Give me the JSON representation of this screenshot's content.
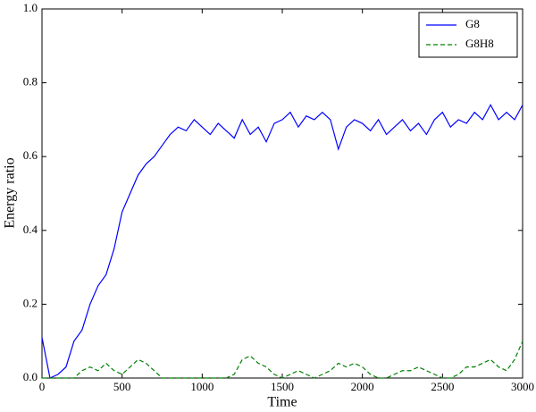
{
  "chart_data": {
    "type": "line",
    "xlabel": "Time",
    "ylabel": "Energy ratio",
    "x": [
      0,
      50,
      100,
      150,
      200,
      250,
      300,
      350,
      400,
      450,
      500,
      550,
      600,
      650,
      700,
      750,
      800,
      850,
      900,
      950,
      1000,
      1050,
      1100,
      1150,
      1200,
      1250,
      1300,
      1350,
      1400,
      1450,
      1500,
      1550,
      1600,
      1650,
      1700,
      1750,
      1800,
      1850,
      1900,
      1950,
      2000,
      2050,
      2100,
      2150,
      2200,
      2250,
      2300,
      2350,
      2400,
      2450,
      2500,
      2550,
      2600,
      2650,
      2700,
      2750,
      2800,
      2850,
      2900,
      2950,
      3000
    ],
    "series": [
      {
        "name": "G8",
        "color": "#0000ff",
        "dash": false,
        "values": [
          0.11,
          0.0,
          0.01,
          0.03,
          0.1,
          0.13,
          0.2,
          0.25,
          0.28,
          0.35,
          0.45,
          0.5,
          0.55,
          0.58,
          0.6,
          0.63,
          0.66,
          0.68,
          0.67,
          0.7,
          0.68,
          0.66,
          0.69,
          0.67,
          0.65,
          0.7,
          0.66,
          0.68,
          0.64,
          0.69,
          0.7,
          0.72,
          0.68,
          0.71,
          0.7,
          0.72,
          0.7,
          0.62,
          0.68,
          0.7,
          0.69,
          0.67,
          0.7,
          0.66,
          0.68,
          0.7,
          0.67,
          0.69,
          0.66,
          0.7,
          0.72,
          0.68,
          0.7,
          0.69,
          0.72,
          0.7,
          0.74,
          0.7,
          0.72,
          0.7,
          0.74
        ]
      },
      {
        "name": "G8H8",
        "color": "#008000",
        "dash": true,
        "values": [
          0.0,
          0.0,
          0.0,
          0.0,
          0.0,
          0.02,
          0.03,
          0.02,
          0.04,
          0.02,
          0.01,
          0.03,
          0.05,
          0.04,
          0.02,
          0.0,
          0.0,
          0.0,
          0.0,
          0.0,
          0.0,
          0.0,
          0.0,
          0.0,
          0.01,
          0.05,
          0.06,
          0.04,
          0.03,
          0.01,
          0.0,
          0.01,
          0.02,
          0.01,
          0.0,
          0.01,
          0.02,
          0.04,
          0.03,
          0.04,
          0.03,
          0.01,
          0.0,
          0.0,
          0.01,
          0.02,
          0.02,
          0.03,
          0.02,
          0.01,
          0.0,
          0.0,
          0.01,
          0.03,
          0.03,
          0.04,
          0.05,
          0.03,
          0.02,
          0.05,
          0.1
        ]
      }
    ],
    "xlim": [
      0,
      3000
    ],
    "xticks": [
      0,
      500,
      1000,
      1500,
      2000,
      2500,
      3000
    ],
    "ylim": [
      0,
      1
    ],
    "yticks": [
      {
        "value": 0,
        "label": "0.0"
      },
      0.2,
      0.4,
      0.6,
      0.8,
      {
        "value": 1,
        "label": "1.0"
      }
    ],
    "legend": "upper right"
  }
}
